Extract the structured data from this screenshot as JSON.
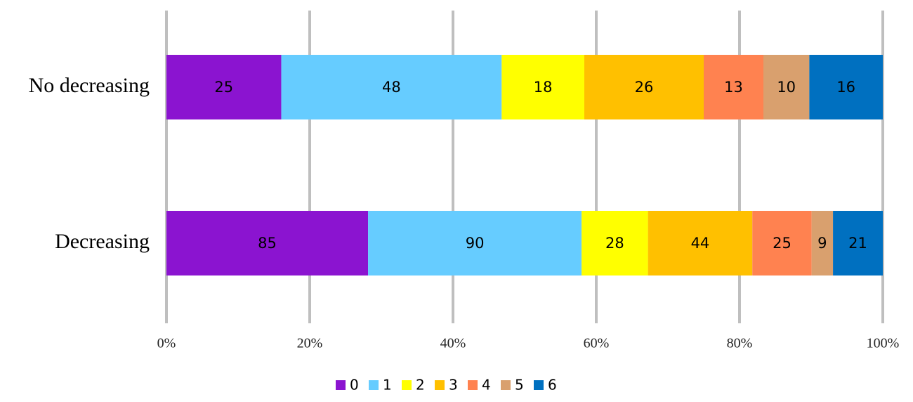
{
  "chart_data": {
    "type": "stacked-percent-barh",
    "categories": [
      "No decreasing",
      "Decreasing"
    ],
    "series": [
      {
        "name": "0",
        "color": "#8b14d0",
        "values": [
          25,
          85
        ]
      },
      {
        "name": "1",
        "color": "#66ccff",
        "values": [
          48,
          90
        ]
      },
      {
        "name": "2",
        "color": "#ffff00",
        "values": [
          18,
          28
        ]
      },
      {
        "name": "3",
        "color": "#ffc000",
        "values": [
          26,
          44
        ]
      },
      {
        "name": "4",
        "color": "#ff8250",
        "values": [
          13,
          25
        ]
      },
      {
        "name": "5",
        "color": "#d9a06e",
        "values": [
          10,
          9
        ]
      },
      {
        "name": "6",
        "color": "#0070c0",
        "values": [
          16,
          21
        ]
      }
    ],
    "xlim": [
      0,
      100
    ],
    "xticks": [
      {
        "value": 0,
        "label": "0%"
      },
      {
        "value": 20,
        "label": "20%"
      },
      {
        "value": 40,
        "label": "40%"
      },
      {
        "value": 60,
        "label": "60%"
      },
      {
        "value": 80,
        "label": "80%"
      },
      {
        "value": 100,
        "label": "100%"
      }
    ],
    "grid": true,
    "legend": "bottom"
  }
}
